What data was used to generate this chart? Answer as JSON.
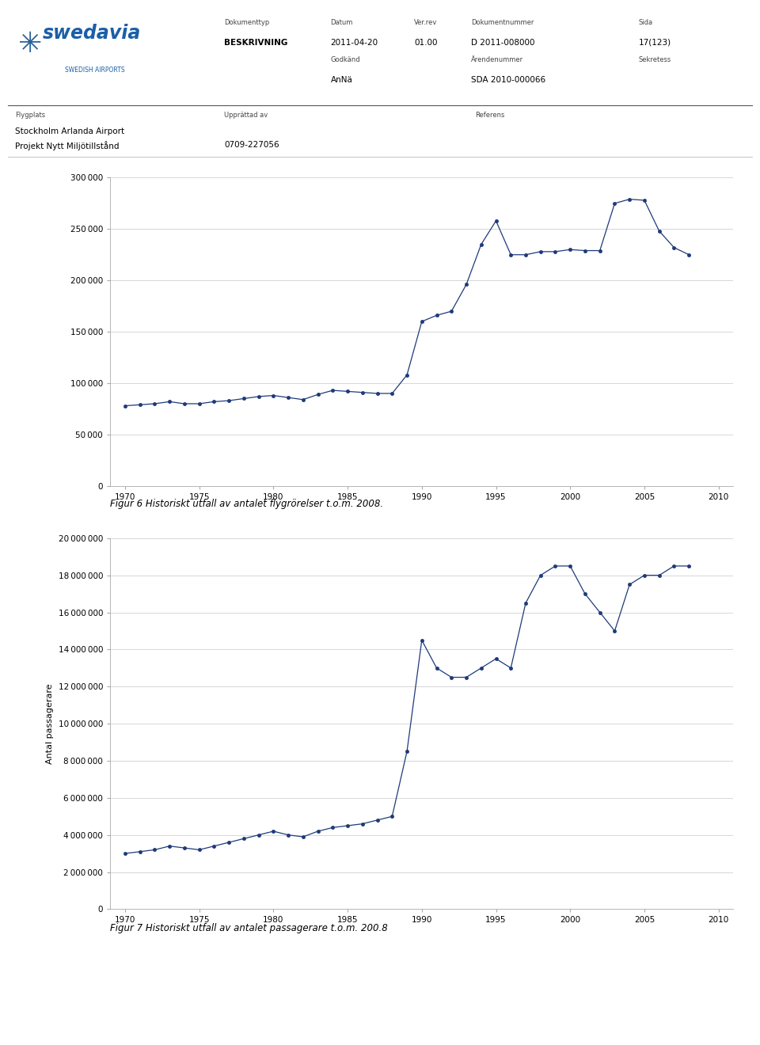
{
  "chart1": {
    "title": "Figur 6 Historiskt utfall av antalet flygrörelser t.o.m. 2008.",
    "years": [
      1970,
      1971,
      1972,
      1973,
      1974,
      1975,
      1976,
      1977,
      1978,
      1979,
      1980,
      1981,
      1982,
      1983,
      1984,
      1985,
      1986,
      1987,
      1988,
      1989,
      1990,
      1991,
      1992,
      1993,
      1994,
      1995,
      1996,
      1997,
      1998,
      1999,
      2000,
      2001,
      2002,
      2003,
      2004,
      2005,
      2006,
      2007,
      2008
    ],
    "values": [
      78000,
      79000,
      80000,
      82000,
      80000,
      80000,
      82000,
      83000,
      85000,
      87000,
      88000,
      86000,
      84000,
      89000,
      93000,
      92000,
      91000,
      90000,
      90000,
      108000,
      160000,
      166000,
      170000,
      196000,
      235000,
      258000,
      225000,
      225000,
      228000,
      228000,
      230000,
      229000,
      229000,
      275000,
      279000,
      278000,
      248000,
      232000,
      225000
    ],
    "ylim": [
      0,
      300000
    ],
    "yticks": [
      0,
      50000,
      100000,
      150000,
      200000,
      250000,
      300000
    ],
    "xlim": [
      1969,
      2011
    ],
    "xticks": [
      1970,
      1975,
      1980,
      1985,
      1990,
      1995,
      2000,
      2005,
      2010
    ],
    "line_color": "#1f3a7a",
    "marker_size": 3
  },
  "chart2": {
    "title": "Figur 7 Historiskt utfall av antalet passagerare t.o.m. 200.8",
    "ylabel": "Antal passagerare",
    "years": [
      1970,
      1971,
      1972,
      1973,
      1974,
      1975,
      1976,
      1977,
      1978,
      1979,
      1980,
      1981,
      1982,
      1983,
      1984,
      1985,
      1986,
      1987,
      1988,
      1989,
      1990,
      1991,
      1992,
      1993,
      1994,
      1995,
      1996,
      1997,
      1998,
      1999,
      2000,
      2001,
      2002,
      2003,
      2004,
      2005,
      2006,
      2007,
      2008
    ],
    "values": [
      3000000,
      3100000,
      3200000,
      3400000,
      3300000,
      3200000,
      3400000,
      3600000,
      3800000,
      4000000,
      4200000,
      4000000,
      3900000,
      4200000,
      4400000,
      4500000,
      4600000,
      4800000,
      5000000,
      8500000,
      14500000,
      13000000,
      12500000,
      12500000,
      13000000,
      13500000,
      13000000,
      16500000,
      18000000,
      18500000,
      18500000,
      17000000,
      16000000,
      15000000,
      17500000,
      18000000,
      18000000,
      18500000,
      18500000
    ],
    "ylim": [
      0,
      20000000
    ],
    "yticks": [
      0,
      2000000,
      4000000,
      6000000,
      8000000,
      10000000,
      12000000,
      14000000,
      16000000,
      18000000,
      20000000
    ],
    "xlim": [
      1969,
      2011
    ],
    "xticks": [
      1970,
      1975,
      1980,
      1985,
      1990,
      1995,
      2000,
      2005,
      2010
    ],
    "line_color": "#1f3a7a",
    "marker_size": 3
  },
  "header": {
    "doc_type_label": "Dokumenttyp",
    "doc_type": "BESKRIVNING",
    "datum_label": "Datum",
    "datum": "2011-04-20",
    "ver_rev_label": "Ver.rev",
    "ver_rev": "01.00",
    "doc_num_label": "Dokumentnummer",
    "doc_num": "D 2011-008000",
    "sida_label": "Sida",
    "sida": "17(123)",
    "godkand_label": "Godkänd",
    "godkand": "AnNä",
    "arendenummer_label": "Ärendenummer",
    "arendenummer": "SDA 2010-000066",
    "sekretess_label": "Sekretess",
    "sekretess": "",
    "flygplats_label": "Flygplats",
    "flygplats_line1": "Stockholm Arlanda Airport",
    "flygplats_line2": "Projekt Nytt Miljötillstånd",
    "upprattad_label": "Upprättad av",
    "referens_label": "Referens",
    "ref_num": "0709-227056"
  },
  "bg_color": "#ffffff",
  "plot_bg_color": "#ffffff",
  "grid_color": "#c8c8c8",
  "line_color_axis": "#aaaaaa"
}
